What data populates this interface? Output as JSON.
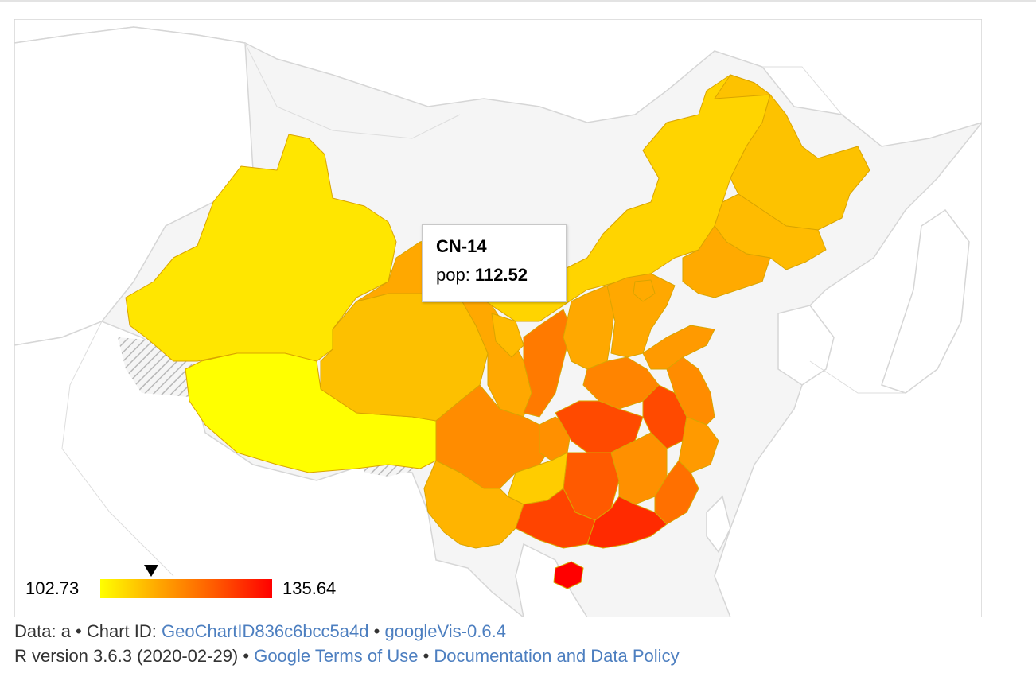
{
  "tooltip": {
    "title": "CN-14",
    "label": "pop:",
    "value": "112.52"
  },
  "legend": {
    "min_label": "102.73",
    "max_label": "135.64",
    "min": 102.73,
    "max": 135.64,
    "marker_value": 112.52,
    "colors": [
      "#ffff00",
      "#ffa800",
      "#ff5a00",
      "#ff0000"
    ]
  },
  "footer": {
    "line1": {
      "data_prefix": "Data: a • Chart ID: ",
      "chart_id_link": "GeoChartID836c6bcc5a4d",
      "sep": " • ",
      "package_link": "googleVis-0.6.4"
    },
    "line2": {
      "r_version": "R version 3.6.3 (2020-02-29) • ",
      "terms_link": "Google Terms of Use",
      "sep": " • ",
      "policy_link": "Documentation and Data Policy"
    }
  },
  "colors": {
    "background": "#f5f5f5",
    "land": "#ffffff",
    "border": "#d6d6d6",
    "link": "#4d7fc0"
  }
}
